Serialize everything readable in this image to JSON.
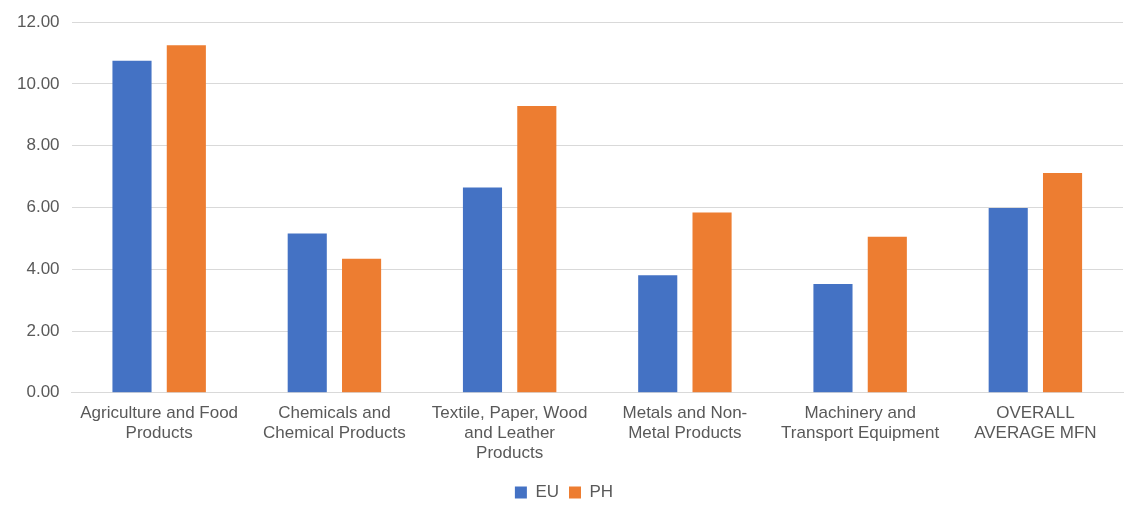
{
  "chart_data": {
    "type": "bar",
    "categories": [
      "Agriculture and Food Products",
      "Chemicals and Chemical Products",
      "Textile, Paper, Wood and Leather Products",
      "Metals and Non-Metal Products",
      "Machinery and Transport Equipment",
      "OVERALL AVERAGE MFN"
    ],
    "series": [
      {
        "name": "EU",
        "color": "#4472c4",
        "values": [
          10.75,
          5.16,
          6.65,
          3.81,
          3.52,
          5.98
        ]
      },
      {
        "name": "PH",
        "color": "#ed7d31",
        "values": [
          11.25,
          4.34,
          9.29,
          5.84,
          5.05,
          7.12
        ]
      }
    ],
    "ylim": [
      0,
      12
    ],
    "yticks": [
      {
        "value": 0,
        "label": "0.00"
      },
      {
        "value": 2,
        "label": "2.00"
      },
      {
        "value": 4,
        "label": "4.00"
      },
      {
        "value": 6,
        "label": "6.00"
      },
      {
        "value": 8,
        "label": "8.00"
      },
      {
        "value": 10,
        "label": "10.00"
      },
      {
        "value": 12,
        "label": "12.00"
      }
    ],
    "grid": "y",
    "legend": "bottom"
  }
}
